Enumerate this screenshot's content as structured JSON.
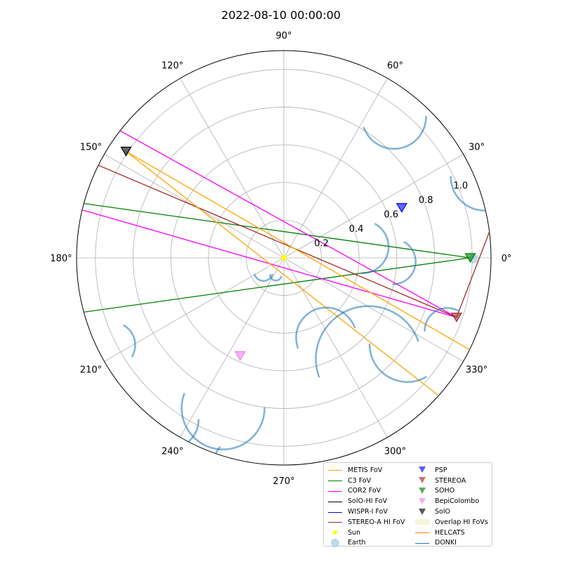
{
  "chart_data": {
    "type": "polar",
    "title": "2022-08-10 00:00:00",
    "theta_ticks": [
      "0°",
      "30°",
      "60°",
      "90°",
      "120°",
      "150°",
      "180°",
      "210°",
      "240°",
      "270°",
      "300°",
      "330°"
    ],
    "r_ticks": [
      "0.2",
      "0.4",
      "0.6",
      "0.8",
      "1.0"
    ],
    "rlim": [
      0,
      1.1
    ],
    "grid": true,
    "legend_position": "lower-right",
    "colors": {
      "METIS FoV": "#ffa500",
      "C3 FoV": "#008000",
      "COR2 FoV": "#ff00ff",
      "SolO-HI FoV": "#000000",
      "WISPR-I FoV": "#0000ff",
      "STEREO-A HI FoV": "#a52a2a",
      "Sun": "#ffff00",
      "Earth": "#a6cee3",
      "PSP": "#0000ff",
      "STEREOA": "#a52a2a",
      "SOHO": "#008000",
      "BepiColombo": "#ee82ee",
      "SolO": "#000000",
      "Overlap HI FoVs": "#f5f5dc",
      "HELCATS": "#ff7f0e",
      "DONKI": "#1f77b4"
    },
    "spacecraft": [
      {
        "name": "PSP",
        "lon_deg": 23,
        "r": 0.68
      },
      {
        "name": "STEREOA",
        "lon_deg": -19,
        "r": 0.97
      },
      {
        "name": "SOHO",
        "lon_deg": 0,
        "r": 0.99
      },
      {
        "name": "BepiColombo",
        "lon_deg": 246,
        "r": 0.57
      },
      {
        "name": "SolO",
        "lon_deg": 146,
        "r": 1.01
      }
    ],
    "sun": {
      "lon_deg": 0,
      "r": 0
    },
    "fovs": [
      {
        "name": "C3 FoV",
        "origin": "SOHO",
        "edge_angles_deg": [
          172,
          188
        ]
      },
      {
        "name": "COR2 FoV",
        "origin": "STEREOA",
        "edge_angles_deg": [
          151,
          164
        ]
      },
      {
        "name": "STEREO-A HI FoV",
        "origin": "STEREOA",
        "edge_angles_deg": [
          157,
          69
        ]
      },
      {
        "name": "METIS FoV",
        "origin": "SolO",
        "edge_angles_deg": [
          -30,
          -38
        ]
      }
    ],
    "cme_fronts": [
      {
        "center_lon": 52,
        "center_r": 0.95,
        "radius": 0.17,
        "arc_start": 200,
        "arc_end": 360
      },
      {
        "center_lon": 22,
        "center_r": 1.15,
        "radius": 0.18,
        "arc_start": 180,
        "arc_end": 270
      },
      {
        "center_lon": 8,
        "center_r": 0.42,
        "radius": 0.14,
        "arc_start": 270,
        "arc_end": 420
      },
      {
        "center_lon": -2,
        "center_r": 0.58,
        "radius": 0.12,
        "arc_start": 270,
        "arc_end": 420
      },
      {
        "center_lon": -24,
        "center_r": 0.95,
        "radius": 0.12,
        "arc_start": 60,
        "arc_end": 180
      },
      {
        "center_lon": -50,
        "center_r": 0.7,
        "radius": 0.28,
        "arc_start": 20,
        "arc_end": 200
      },
      {
        "center_lon": -62,
        "center_r": 0.48,
        "radius": 0.16,
        "arc_start": 20,
        "arc_end": 200
      },
      {
        "center_lon": -35,
        "center_r": 0.8,
        "radius": 0.2,
        "arc_start": 180,
        "arc_end": 300
      },
      {
        "center_lon": 248,
        "center_r": 0.86,
        "radius": 0.22,
        "arc_start": 160,
        "arc_end": 360
      },
      {
        "center_lon": 235,
        "center_r": 1.05,
        "radius": 0.15,
        "arc_start": 220,
        "arc_end": 360
      },
      {
        "center_lon": 258,
        "center_r": 1.12,
        "radius": 0.14,
        "arc_start": 140,
        "arc_end": 260
      },
      {
        "center_lon": 207,
        "center_r": 1.02,
        "radius": 0.12,
        "arc_start": 330,
        "arc_end": 420
      },
      {
        "center_lon": 214,
        "center_r": 0.13,
        "radius": 0.05,
        "arc_start": 200,
        "arc_end": 340
      },
      {
        "center_lon": 245,
        "center_r": 0.1,
        "radius": 0.03,
        "arc_start": 180,
        "arc_end": 340
      }
    ]
  },
  "legend": {
    "col1": [
      {
        "label": "METIS FoV",
        "kind": "line",
        "color": "#ffa500"
      },
      {
        "label": "C3 FoV",
        "kind": "line",
        "color": "#008000"
      },
      {
        "label": "COR2 FoV",
        "kind": "line",
        "color": "#ff00ff"
      },
      {
        "label": "SolO-HI FoV",
        "kind": "line",
        "color": "#000000"
      },
      {
        "label": "WISPR-I FoV",
        "kind": "line",
        "color": "#0000ff"
      },
      {
        "label": "STEREO-A HI FoV",
        "kind": "line",
        "color": "#a52a2a"
      },
      {
        "label": "Sun",
        "kind": "dot",
        "color": "#ffff00"
      },
      {
        "label": "Earth",
        "kind": "circle",
        "color": "#a6cee3"
      }
    ],
    "col2": [
      {
        "label": "PSP",
        "kind": "tri",
        "color": "#0000ff"
      },
      {
        "label": "STEREOA",
        "kind": "tri",
        "color": "#a52a2a"
      },
      {
        "label": "SOHO",
        "kind": "tri",
        "color": "#008000"
      },
      {
        "label": "BepiColombo",
        "kind": "tri",
        "color": "#ee82ee"
      },
      {
        "label": "SolO",
        "kind": "tri",
        "color": "#000000"
      },
      {
        "label": "Overlap HI FoVs",
        "kind": "patch",
        "color": "#f5f5dc"
      },
      {
        "label": "HELCATS",
        "kind": "line",
        "color": "#ff7f0e"
      },
      {
        "label": "DONKI",
        "kind": "line",
        "color": "#1f77b4"
      }
    ]
  }
}
